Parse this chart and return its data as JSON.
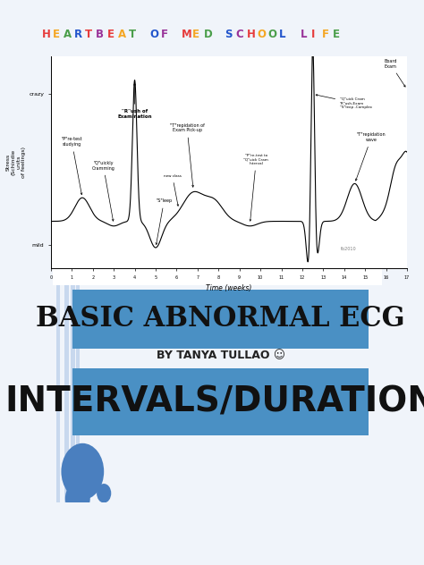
{
  "bg_color": "#f0f4fa",
  "title_banner_color": "#4a90c4",
  "title_text": "BASIC ABNORMAL ECG",
  "title_fontsize": 22,
  "subtitle_text": "BY TANYA TULLAO ☺",
  "subtitle_fontsize": 9,
  "subtitle_color": "#222222",
  "banner2_color": "#4a90c4",
  "banner2_text": "INTERVALS/DURATION",
  "banner2_fontsize": 28,
  "banner2_text_color": "#111111",
  "circle_color": "#4a7fbf",
  "stripe_color": "#c8d8ee",
  "title_letter_colors": [
    "#e63c3c",
    "#f5a623",
    "#4a9e4a",
    "#2255cc",
    "#e63c3c",
    "#993399",
    "#e63c3c",
    "#f5a623",
    "#4a9e4a",
    "#2255cc",
    "#993399",
    "#e63c3c",
    "#f5a623",
    "#4a9e4a",
    "#2255cc",
    "#993399",
    "#e63c3c",
    "#f5a623",
    "#4a9e4a",
    "#2255cc",
    "#993399",
    "#e63c3c",
    "#f5a623",
    "#4a9e4a"
  ],
  "title_letters": "HEARTBEAT OF MED SCHOOL LIFE"
}
